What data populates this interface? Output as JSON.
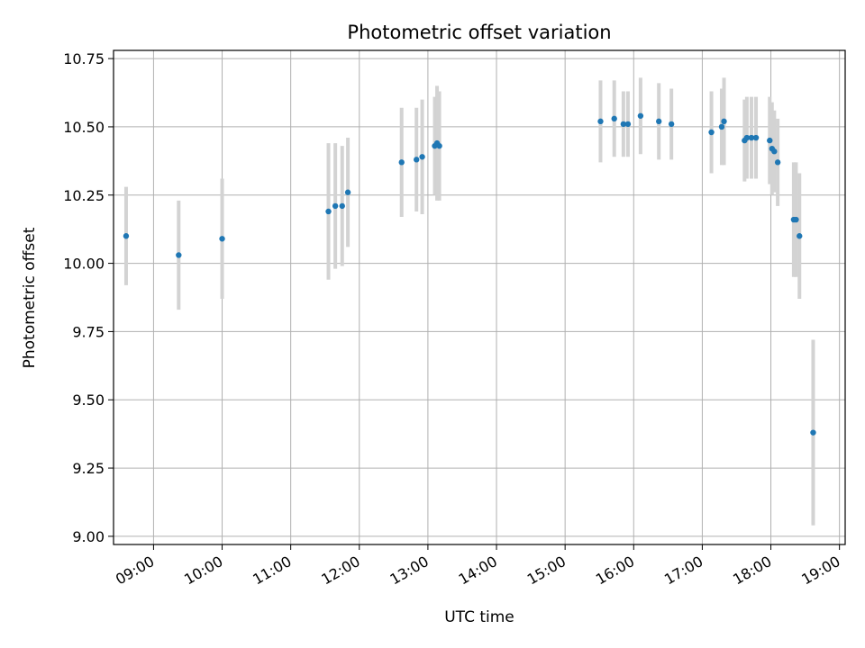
{
  "chart_data": {
    "type": "scatter",
    "title": "Photometric offset variation",
    "xlabel": "UTC time",
    "ylabel": "Photometric offset",
    "xlim": [
      "08:25",
      "19:05"
    ],
    "ylim": [
      8.97,
      10.78
    ],
    "grid": true,
    "x_ticks": [
      "09:00",
      "10:00",
      "11:00",
      "12:00",
      "13:00",
      "14:00",
      "15:00",
      "16:00",
      "17:00",
      "18:00",
      "19:00"
    ],
    "y_ticks": [
      "9.00",
      "9.25",
      "9.50",
      "9.75",
      "10.00",
      "10.25",
      "10.50",
      "10.75"
    ],
    "colors": {
      "point": "#1f77b4",
      "errorbar": "#d3d3d3",
      "grid": "#b0b0b0",
      "axis": "#000000"
    },
    "series": [
      {
        "points": [
          {
            "x": "08:36",
            "y": 10.1,
            "err": 0.18
          },
          {
            "x": "09:22",
            "y": 10.03,
            "err": 0.2
          },
          {
            "x": "10:00",
            "y": 10.09,
            "err": 0.22
          },
          {
            "x": "11:33",
            "y": 10.19,
            "err": 0.25
          },
          {
            "x": "11:39",
            "y": 10.21,
            "err": 0.23
          },
          {
            "x": "11:45",
            "y": 10.21,
            "err": 0.22
          },
          {
            "x": "11:50",
            "y": 10.26,
            "err": 0.2
          },
          {
            "x": "12:37",
            "y": 10.37,
            "err": 0.2
          },
          {
            "x": "12:50",
            "y": 10.38,
            "err": 0.19
          },
          {
            "x": "12:55",
            "y": 10.39,
            "err": 0.21
          },
          {
            "x": "13:06",
            "y": 10.43,
            "err": 0.18
          },
          {
            "x": "13:08",
            "y": 10.44,
            "err": 0.21
          },
          {
            "x": "13:10",
            "y": 10.43,
            "err": 0.2
          },
          {
            "x": "15:31",
            "y": 10.52,
            "err": 0.15
          },
          {
            "x": "15:43",
            "y": 10.53,
            "err": 0.14
          },
          {
            "x": "15:51",
            "y": 10.51,
            "err": 0.12
          },
          {
            "x": "15:55",
            "y": 10.51,
            "err": 0.12
          },
          {
            "x": "16:06",
            "y": 10.54,
            "err": 0.14
          },
          {
            "x": "16:22",
            "y": 10.52,
            "err": 0.14
          },
          {
            "x": "16:33",
            "y": 10.51,
            "err": 0.13
          },
          {
            "x": "17:08",
            "y": 10.48,
            "err": 0.15
          },
          {
            "x": "17:17",
            "y": 10.5,
            "err": 0.14
          },
          {
            "x": "17:19",
            "y": 10.52,
            "err": 0.16
          },
          {
            "x": "17:37",
            "y": 10.45,
            "err": 0.15
          },
          {
            "x": "17:39",
            "y": 10.46,
            "err": 0.15
          },
          {
            "x": "17:43",
            "y": 10.46,
            "err": 0.15
          },
          {
            "x": "17:47",
            "y": 10.46,
            "err": 0.15
          },
          {
            "x": "17:59",
            "y": 10.45,
            "err": 0.16
          },
          {
            "x": "18:01",
            "y": 10.42,
            "err": 0.17
          },
          {
            "x": "18:03",
            "y": 10.41,
            "err": 0.15
          },
          {
            "x": "18:06",
            "y": 10.37,
            "err": 0.16
          },
          {
            "x": "18:20",
            "y": 10.16,
            "err": 0.21
          },
          {
            "x": "18:22",
            "y": 10.16,
            "err": 0.21
          },
          {
            "x": "18:25",
            "y": 10.1,
            "err": 0.23
          },
          {
            "x": "18:37",
            "y": 9.38,
            "err": 0.34
          }
        ]
      }
    ]
  }
}
